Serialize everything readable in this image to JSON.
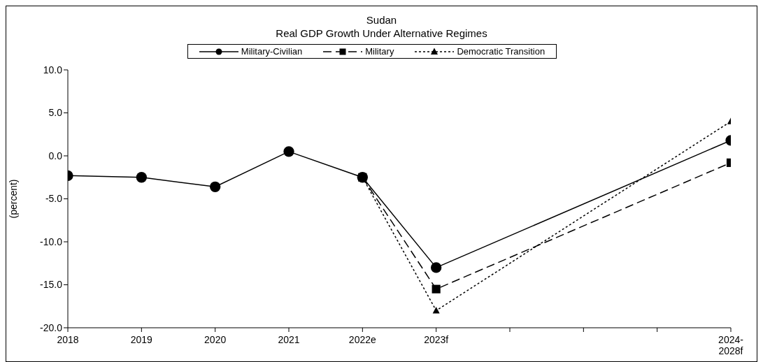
{
  "chart_data": {
    "type": "line",
    "title": "Sudan",
    "subtitle": "Real GDP Growth Under Alternative Regimes",
    "ylabel": "(percent)",
    "categories": [
      "2018",
      "2019",
      "2020",
      "2021",
      "2022e",
      "2023f",
      null,
      null,
      null,
      "2024-2028f"
    ],
    "series": [
      {
        "name": "Military-Civilian",
        "color": "#000000",
        "line_style": "solid",
        "marker": "circle",
        "values": [
          -2.3,
          -2.5,
          -3.6,
          0.5,
          -2.5,
          -13.0,
          null,
          null,
          null,
          1.8
        ]
      },
      {
        "name": "Military",
        "color": "#000000",
        "line_style": "dashed",
        "marker": "square",
        "values": [
          null,
          null,
          null,
          null,
          -2.5,
          -15.5,
          null,
          null,
          null,
          -0.8
        ]
      },
      {
        "name": "Democratic Transition",
        "color": "#000000",
        "line_style": "dotted",
        "marker": "triangle",
        "values": [
          null,
          null,
          null,
          null,
          -2.5,
          -18.0,
          null,
          null,
          null,
          4.0
        ]
      }
    ],
    "ylim": [
      -20,
      10
    ],
    "yticks": [
      {
        "value": -20,
        "label": "-20.0"
      },
      {
        "value": -15,
        "label": "-15.0"
      },
      {
        "value": -10,
        "label": "-10.0"
      },
      {
        "value": -5,
        "label": "-5.0"
      },
      {
        "value": 0,
        "label": "0.0"
      },
      {
        "value": 5,
        "label": "5.0"
      },
      {
        "value": 10,
        "label": "10.0"
      }
    ],
    "grid": false,
    "legend": "top"
  }
}
